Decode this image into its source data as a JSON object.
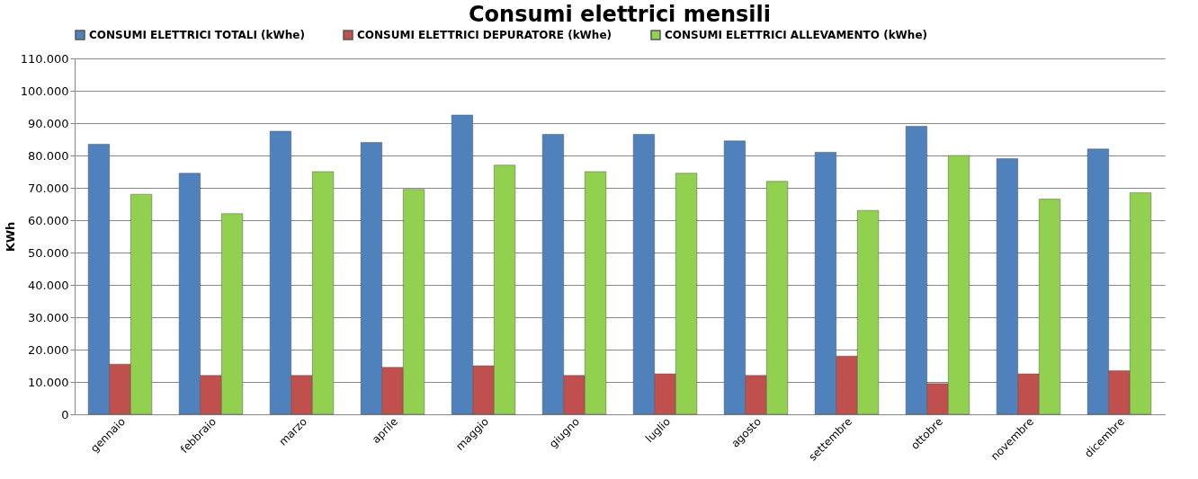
{
  "chart_data": {
    "type": "bar",
    "title": "Consumi elettrici mensili",
    "ylabel": "KWh",
    "categories": [
      "gennaio",
      "febbraio",
      "marzo",
      "aprile",
      "maggio",
      "giugno",
      "luglio",
      "agosto",
      "settembre",
      "ottobre",
      "novembre",
      "dicembre"
    ],
    "series": [
      {
        "name": "CONSUMI ELETTRICI TOTALI (kWhe)",
        "color": "#4f81bd",
        "values": [
          83500,
          74500,
          87500,
          84000,
          92500,
          86500,
          86500,
          84500,
          81000,
          89000,
          79000,
          82000
        ]
      },
      {
        "name": "CONSUMI ELETTRICI DEPURATORE (kWhe)",
        "color": "#c0504d",
        "values": [
          15500,
          12000,
          12000,
          14500,
          15000,
          12000,
          12500,
          12000,
          18000,
          9500,
          12500,
          13500
        ]
      },
      {
        "name": "CONSUMI ELETTRICI ALLEVAMENTO (kWhe)",
        "color": "#92d050",
        "values": [
          68000,
          62000,
          75000,
          69500,
          77000,
          75000,
          74500,
          72000,
          63000,
          80000,
          66500,
          68500
        ]
      }
    ],
    "ylim": [
      0,
      110000
    ],
    "yticks": [
      0,
      {
        "value": 10000,
        "label": "10.000"
      },
      {
        "value": 20000,
        "label": "20.000"
      },
      {
        "value": 30000,
        "label": "30.000"
      },
      {
        "value": 40000,
        "label": "40.000"
      },
      {
        "value": 50000,
        "label": "50.000"
      },
      {
        "value": 60000,
        "label": "60.000"
      },
      {
        "value": 70000,
        "label": "70.000"
      },
      {
        "value": 80000,
        "label": "80.000"
      },
      {
        "value": 90000,
        "label": "90.000"
      },
      {
        "value": 100000,
        "label": "100.000"
      },
      {
        "value": 110000,
        "label": "110.000"
      }
    ],
    "grid": "y",
    "legend": "top"
  }
}
